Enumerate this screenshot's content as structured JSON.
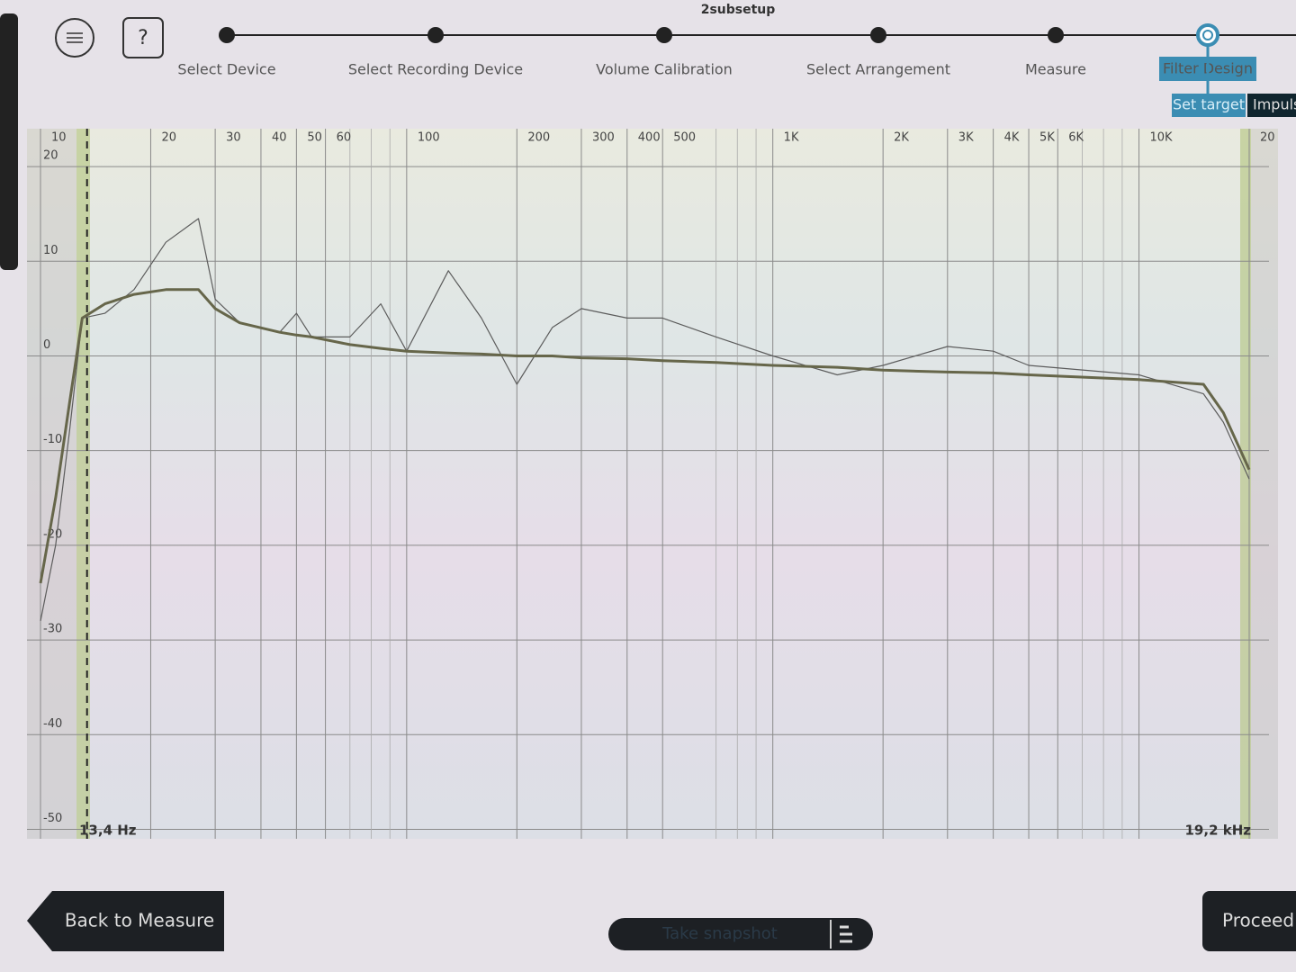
{
  "header": {
    "title": "2subsetup",
    "help": "?"
  },
  "steps": [
    "Select Device",
    "Select Recording Device",
    "Volume Calibration",
    "Select Arrangement",
    "Measure",
    "Filter Design"
  ],
  "tabs": [
    "Set target",
    "Impuls"
  ],
  "buttons": {
    "back": "Back to Measure",
    "proceed": "Proceed t",
    "snapshot": "Take snapshot"
  },
  "chart_data": {
    "type": "line",
    "xscale": "log",
    "xlim": [
      10,
      20000
    ],
    "ylim": [
      -51,
      24
    ],
    "xticks": [
      10,
      20,
      30,
      40,
      50,
      60,
      100,
      200,
      300,
      400,
      500,
      {
        "value": 1000,
        "label": "1K"
      },
      {
        "value": 2000,
        "label": "2K"
      },
      {
        "value": 3000,
        "label": "3K"
      },
      {
        "value": 4000,
        "label": "4K"
      },
      {
        "value": 5000,
        "label": "5K"
      },
      {
        "value": 6000,
        "label": "6K"
      },
      {
        "value": 10000,
        "label": "10K"
      },
      {
        "value": 20000,
        "label": "20"
      }
    ],
    "xminorticks": [
      70,
      80,
      90,
      700,
      800,
      900,
      7000,
      8000,
      9000
    ],
    "yticks": [
      -50,
      -40,
      -30,
      -20,
      -10,
      0,
      10,
      20
    ],
    "grid": true,
    "limits": [
      {
        "value": 13.4,
        "label": "13,4 Hz"
      },
      {
        "value": 19200,
        "label": "19,2 kHz"
      }
    ],
    "x": [
      10,
      11,
      12,
      13,
      15,
      18,
      22,
      27,
      30,
      35,
      45,
      50,
      55,
      70,
      85,
      100,
      130,
      160,
      200,
      250,
      300,
      400,
      500,
      700,
      1000,
      1500,
      2000,
      3000,
      4000,
      5000,
      10000,
      15000,
      17000,
      20000
    ],
    "series": [
      {
        "color": "#5c5c5c",
        "width": 1.2,
        "values": [
          -28,
          -20,
          -8,
          4,
          4.5,
          7,
          12,
          14.5,
          6,
          3.5,
          2.5,
          4.5,
          2,
          2,
          5.5,
          0.5,
          9,
          4,
          -3,
          3,
          5,
          4,
          4,
          2,
          0,
          -2,
          -1,
          1,
          0.5,
          -1,
          -2,
          -4,
          -7,
          -13
        ]
      },
      {
        "color": "#66664a",
        "width": 3,
        "values": [
          -24,
          -15,
          -5,
          4,
          5.5,
          6.5,
          7,
          7,
          5,
          3.5,
          2.5,
          2.2,
          2,
          1.2,
          0.8,
          0.5,
          0.3,
          0.2,
          0,
          0,
          -0.2,
          -0.3,
          -0.5,
          -0.7,
          -1,
          -1.2,
          -1.5,
          -1.7,
          -1.8,
          -2,
          -2.5,
          -3,
          -6,
          -12
        ]
      }
    ]
  }
}
